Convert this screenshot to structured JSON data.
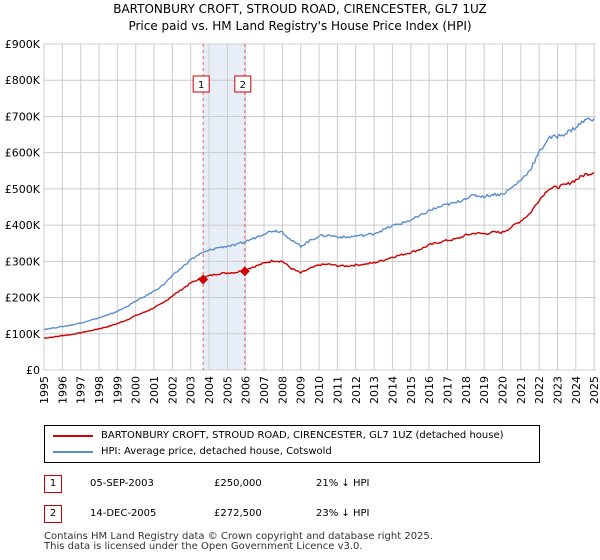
{
  "chart_data": {
    "type": "line",
    "title": "BARTONBURY CROFT, STROUD ROAD, CIRENCESTER, GL7 1UZ",
    "subtitle": "Price paid vs. HM Land Registry's House Price Index (HPI)",
    "xlabel": "",
    "ylabel": "",
    "xlim": [
      1995.0,
      2025.1
    ],
    "ylim": [
      0,
      900000
    ],
    "grid": true,
    "y_ticks": [
      {
        "value": 0,
        "label": "£0"
      },
      {
        "value": 100000,
        "label": "£100K"
      },
      {
        "value": 200000,
        "label": "£200K"
      },
      {
        "value": 300000,
        "label": "£300K"
      },
      {
        "value": 400000,
        "label": "£400K"
      },
      {
        "value": 500000,
        "label": "£500K"
      },
      {
        "value": 600000,
        "label": "£600K"
      },
      {
        "value": 700000,
        "label": "£700K"
      },
      {
        "value": 800000,
        "label": "£800K"
      },
      {
        "value": 900000,
        "label": "£900K"
      }
    ],
    "x_ticks": [
      "1995",
      "1996",
      "1997",
      "1998",
      "1999",
      "2000",
      "2001",
      "2002",
      "2003",
      "2004",
      "2005",
      "2006",
      "2007",
      "2008",
      "2009",
      "2010",
      "2011",
      "2012",
      "2013",
      "2014",
      "2015",
      "2016",
      "2017",
      "2018",
      "2019",
      "2020",
      "2021",
      "2022",
      "2023",
      "2024",
      "2025"
    ],
    "series": [
      {
        "name": "BARTONBURY CROFT, STROUD ROAD, CIRENCESTER, GL7 1UZ (detached house)",
        "color": "#cc0000",
        "x": [
          1995.0,
          1995.5,
          1996.0,
          1996.5,
          1997.0,
          1997.5,
          1998.0,
          1998.5,
          1999.0,
          1999.5,
          2000.0,
          2000.5,
          2001.0,
          2001.5,
          2002.0,
          2002.5,
          2003.0,
          2003.5,
          2004.0,
          2004.5,
          2005.0,
          2005.5,
          2006.0,
          2006.5,
          2007.0,
          2007.5,
          2008.0,
          2008.5,
          2009.0,
          2009.5,
          2010.0,
          2010.5,
          2011.0,
          2011.5,
          2012.0,
          2012.5,
          2013.0,
          2013.5,
          2014.0,
          2014.5,
          2015.0,
          2015.5,
          2016.0,
          2016.5,
          2017.0,
          2017.5,
          2018.0,
          2018.5,
          2019.0,
          2019.5,
          2020.0,
          2020.5,
          2021.0,
          2021.5,
          2022.0,
          2022.5,
          2023.0,
          2023.5,
          2024.0,
          2024.5,
          2025.0
        ],
        "values": [
          88000,
          91000,
          95000,
          98000,
          103000,
          108000,
          114000,
          120000,
          128000,
          138000,
          150000,
          160000,
          172000,
          185000,
          205000,
          222000,
          240000,
          252000,
          260000,
          266000,
          268000,
          270000,
          278000,
          286000,
          295000,
          302000,
          300000,
          280000,
          268000,
          280000,
          290000,
          292000,
          288000,
          287000,
          290000,
          292000,
          296000,
          303000,
          312000,
          318000,
          325000,
          333000,
          345000,
          352000,
          358000,
          362000,
          372000,
          378000,
          376000,
          380000,
          380000,
          395000,
          412000,
          432000,
          470000,
          500000,
          505000,
          512000,
          525000,
          540000,
          545000
        ]
      },
      {
        "name": "HPI: Average price, detached house, Cotswold",
        "color": "#5b8fd0",
        "x": [
          1995.0,
          1995.5,
          1996.0,
          1996.5,
          1997.0,
          1997.5,
          1998.0,
          1998.5,
          1999.0,
          1999.5,
          2000.0,
          2000.5,
          2001.0,
          2001.5,
          2002.0,
          2002.5,
          2003.0,
          2003.5,
          2004.0,
          2004.5,
          2005.0,
          2005.5,
          2006.0,
          2006.5,
          2007.0,
          2007.5,
          2008.0,
          2008.5,
          2009.0,
          2009.5,
          2010.0,
          2010.5,
          2011.0,
          2011.5,
          2012.0,
          2012.5,
          2013.0,
          2013.5,
          2014.0,
          2014.5,
          2015.0,
          2015.5,
          2016.0,
          2016.5,
          2017.0,
          2017.5,
          2018.0,
          2018.5,
          2019.0,
          2019.5,
          2020.0,
          2020.5,
          2021.0,
          2021.5,
          2022.0,
          2022.5,
          2023.0,
          2023.5,
          2024.0,
          2024.5,
          2025.0
        ],
        "values": [
          112000,
          116000,
          120000,
          124000,
          130000,
          137000,
          144000,
          152000,
          162000,
          175000,
          190000,
          203000,
          218000,
          235000,
          260000,
          282000,
          305000,
          320000,
          330000,
          338000,
          342000,
          345000,
          355000,
          365000,
          377000,
          385000,
          382000,
          357000,
          342000,
          357000,
          370000,
          372000,
          368000,
          366000,
          370000,
          372000,
          377000,
          387000,
          398000,
          405000,
          414000,
          425000,
          440000,
          449000,
          457000,
          462000,
          475000,
          482000,
          479000,
          485000,
          485000,
          503000,
          525000,
          552000,
          600000,
          640000,
          645000,
          655000,
          670000,
          690000,
          695000
        ]
      }
    ],
    "transactions": [
      {
        "label": "1",
        "date": "05-SEP-2003",
        "x": 2003.68,
        "price_value": 250000,
        "price": "£250,000",
        "hpi": "21% ↓ HPI"
      },
      {
        "label": "2",
        "date": "14-DEC-2005",
        "x": 2005.95,
        "price_value": 272500,
        "price": "£272,500",
        "hpi": "23% ↓ HPI"
      }
    ],
    "shaded_span": [
      2003.68,
      2005.95
    ],
    "shaded_color": "#e8eef8",
    "grid_color": "#cccccc",
    "dash_color": "#e06060"
  },
  "footer": {
    "line1": "Contains HM Land Registry data © Crown copyright and database right 2025.",
    "line2": "This data is licensed under the Open Government Licence v3.0."
  }
}
